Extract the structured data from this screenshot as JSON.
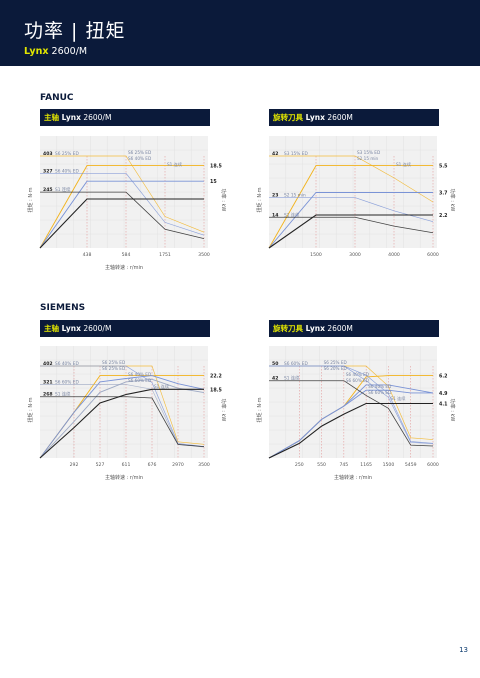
{
  "header": {
    "title": "功率 | 扭矩",
    "brand": "Lynx",
    "model": " 2600/M"
  },
  "sections": {
    "fanuc": "FANUC",
    "siemens": "SIEMENS"
  },
  "panels": {
    "p1": {
      "hl": "主轴",
      "b": " Lynx",
      "rest": " 2600/M"
    },
    "p2": {
      "hl": "旋转刀具",
      "b": " Lynx",
      "rest": " 2600M"
    },
    "p3": {
      "hl": "主轴",
      "b": " Lynx",
      "rest": " 2600/M"
    },
    "p4": {
      "hl": "旋转刀具",
      "b": " Lynx",
      "rest": " 2600M"
    }
  },
  "colors": {
    "s1": "#222222",
    "ed25": "#f2b31c",
    "ed40": "#7a93d6",
    "ed60": "#9da9c4",
    "min": "#5577aa",
    "grid": "#e3e3e3",
    "ref": "#e08b8b",
    "header": "#0b1a3a"
  },
  "page_number": "13",
  "chart_data": [
    {
      "type": "line",
      "xlabel": "主轴转速 : r/min",
      "ylabel": "扭矩 : N·m",
      "y2label": "功率 : kW",
      "xticks": [
        "438",
        "584",
        "1751",
        "3500"
      ],
      "x": [
        0,
        438,
        584,
        1751,
        3500
      ],
      "torque_labels": [
        {
          "v": "403",
          "s": "S6 25% ED"
        },
        {
          "v": "327",
          "s": "S6 40% ED"
        },
        {
          "v": "245",
          "s": "S1 连续"
        }
      ],
      "power_labels": [
        {
          "v": "18.5"
        },
        {
          "v": "15"
        }
      ],
      "inline_labels": [
        "S6 25% ED",
        "S6 40% ED",
        "S1 连续"
      ],
      "series": [
        {
          "name": "S6 25% ED",
          "torque": [
            403,
            403,
            403,
            138,
            69
          ],
          "power": [
            0,
            18.5,
            18.5,
            18.5,
            18.5
          ]
        },
        {
          "name": "S6 40% ED",
          "torque": [
            327,
            327,
            327,
            112,
            56
          ],
          "power": [
            0,
            15,
            15,
            15,
            15
          ]
        },
        {
          "name": "S1 连续",
          "torque": [
            245,
            245,
            245,
            82,
            41
          ],
          "power": [
            0,
            11,
            11,
            11,
            11
          ]
        }
      ]
    },
    {
      "type": "line",
      "xlabel": "",
      "ylabel": "扭矩 : N·m",
      "y2label": "功率 : kW",
      "xticks": [
        "1500",
        "3000",
        "4000",
        "6000"
      ],
      "x": [
        0,
        1500,
        3000,
        4000,
        6000
      ],
      "torque_labels": [
        {
          "v": "42",
          "s": "S3 15% ED"
        },
        {
          "v": "23",
          "s": "S2 15 min"
        },
        {
          "v": "14",
          "s": "S1 连续"
        }
      ],
      "power_labels": [
        {
          "v": "5.5"
        },
        {
          "v": "3.7"
        },
        {
          "v": "2.2"
        }
      ],
      "inline_labels": [
        "S3 15% ED",
        "S2 15 min",
        "S1 连续"
      ],
      "series": [
        {
          "name": "S3 15% ED",
          "torque": [
            42,
            42,
            42,
            32,
            21
          ],
          "power": [
            0,
            5.5,
            5.5,
            5.5,
            5.5
          ]
        },
        {
          "name": "S2 15 min",
          "torque": [
            23,
            23,
            23,
            17,
            12
          ],
          "power": [
            0,
            3.7,
            3.7,
            3.7,
            3.7
          ]
        },
        {
          "name": "S1 连续",
          "torque": [
            14,
            14,
            14,
            10,
            7
          ],
          "power": [
            0,
            2.2,
            2.2,
            2.2,
            2.2
          ]
        }
      ]
    },
    {
      "type": "line",
      "xlabel": "主轴转速 : r/min",
      "ylabel": "扭矩 : N·m",
      "y2label": "功率 : kW",
      "xticks": [
        "292",
        "527",
        "611",
        "676",
        "2970",
        "3500"
      ],
      "x": [
        0,
        292,
        527,
        611,
        676,
        2970,
        3500
      ],
      "torque_labels": [
        {
          "v": "402",
          "s": "S6 40% ED"
        },
        {
          "v": "321",
          "s": "S6 60% ED"
        },
        {
          "v": "268",
          "s": "S1 连续"
        }
      ],
      "power_labels": [
        {
          "v": "22.2"
        },
        {
          "v": "18.5"
        }
      ],
      "inline_labels": [
        "S6 25% ED",
        "S6 25% ED",
        "S6 40% ED",
        "S6 60% ED",
        "S1 连续"
      ],
      "series": [
        {
          "name": "S6 25% ED",
          "torque": [
            402,
            402,
            402,
            402,
            402,
            71,
            60
          ],
          "power": [
            0,
            12.3,
            22.2,
            22.2,
            22.2,
            22.2,
            22.2
          ]
        },
        {
          "name": "S6 40% ED",
          "torque": [
            402,
            402,
            402,
            402,
            330,
            64,
            50
          ],
          "power": [
            0,
            12.3,
            20.5,
            21.4,
            22.2,
            20,
            18.5
          ]
        },
        {
          "name": "S6 60% ED",
          "torque": [
            321,
            321,
            321,
            321,
            300,
            60,
            48
          ],
          "power": [
            0,
            9.8,
            17.7,
            20.5,
            21.2,
            18.8,
            17.6
          ]
        },
        {
          "name": "S1 连续",
          "torque": [
            268,
            268,
            268,
            268,
            262,
            59,
            50
          ],
          "power": [
            0,
            8.2,
            14.8,
            17.1,
            18.5,
            18.5,
            18.5
          ]
        }
      ]
    },
    {
      "type": "line",
      "xlabel": "主轴转速 : r/min",
      "ylabel": "扭矩 : N·m",
      "y2label": "功率 : kW",
      "xticks": [
        "250",
        "550",
        "745",
        "1165",
        "1500",
        "5459",
        "6000"
      ],
      "x": [
        0,
        250,
        550,
        745,
        1165,
        1500,
        5459,
        6000
      ],
      "torque_labels": [
        {
          "v": "50",
          "s": "S6 60% ED"
        },
        {
          "v": "42",
          "s": "S1 连续"
        }
      ],
      "power_labels": [
        {
          "v": "6.2"
        },
        {
          "v": "4.9"
        },
        {
          "v": "4.1"
        }
      ],
      "inline_labels": [
        "S6 25% ED",
        "S6 20% ED",
        "S6 40% ED",
        "S6 60% ED",
        "S6 40% ED",
        "S6 60% ED",
        "S1 连续"
      ],
      "series": [
        {
          "name": "S6 25% ED",
          "torque": [
            50,
            50,
            50,
            50,
            50,
            39,
            11,
            10
          ],
          "power": [
            0,
            1.3,
            2.9,
            3.9,
            6.1,
            6.2,
            6.2,
            6.2
          ]
        },
        {
          "name": "S6 20% ED",
          "torque": [
            50,
            50,
            50,
            50,
            45,
            35,
            9,
            8
          ],
          "power": [
            0,
            1.3,
            2.9,
            3.9,
            5.5,
            5.5,
            5.2,
            4.9
          ]
        },
        {
          "name": "S6 40% ED",
          "torque": [
            50,
            50,
            50,
            50,
            42,
            33,
            8.5,
            7.8
          ],
          "power": [
            0,
            1.3,
            2.9,
            3.9,
            5.1,
            5.1,
            4.9,
            4.9
          ]
        },
        {
          "name": "S1 连续",
          "torque": [
            42,
            42,
            42,
            42,
            34,
            27,
            7,
            6.5
          ],
          "power": [
            0,
            1.1,
            2.4,
            3.3,
            4.1,
            4.1,
            4.1,
            4.1
          ]
        }
      ]
    }
  ]
}
